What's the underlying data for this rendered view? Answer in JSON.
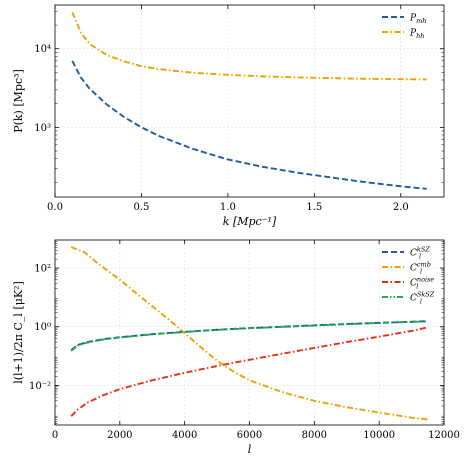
{
  "chart_data": [
    {
      "type": "line",
      "xlabel": "k [Mpc⁻¹]",
      "ylabel": "P(k) [Mpc³]",
      "xlim": [
        0,
        2.25
      ],
      "ylim": [
        130,
        36000
      ],
      "yscale": "log",
      "grid": true,
      "legend": "top-right",
      "x_ticks": [
        0.0,
        0.5,
        1.0,
        1.5,
        2.0
      ],
      "x_tick_labels": [
        "0.0",
        "0.5",
        "1.0",
        "1.5",
        "2.0"
      ],
      "y_ticks": [
        1000,
        10000
      ],
      "y_tick_labels": [
        "10³",
        "10⁴"
      ],
      "series": [
        {
          "name": "P_mh",
          "color": "#1f5aa6",
          "dash": "dashed",
          "x": [
            0.1,
            0.15,
            0.2,
            0.3,
            0.4,
            0.5,
            0.6,
            0.8,
            1.0,
            1.2,
            1.4,
            1.6,
            1.8,
            2.0,
            2.15
          ],
          "y": [
            7000,
            4300,
            3100,
            1950,
            1350,
            1000,
            780,
            530,
            390,
            315,
            265,
            230,
            200,
            178,
            165
          ]
        },
        {
          "name": "P_hh",
          "color": "#f0a000",
          "dash": "dashdot",
          "x": [
            0.1,
            0.15,
            0.2,
            0.3,
            0.4,
            0.5,
            0.6,
            0.8,
            1.0,
            1.2,
            1.4,
            1.6,
            1.8,
            2.0,
            2.15
          ],
          "y": [
            29000,
            16000,
            11500,
            8300,
            6900,
            6000,
            5500,
            4950,
            4650,
            4450,
            4320,
            4220,
            4150,
            4100,
            4070
          ]
        }
      ]
    },
    {
      "type": "line",
      "xlabel": "l",
      "ylabel": "l(l+1)/2π C_l [μK²]",
      "xlim": [
        0,
        12000
      ],
      "ylim": [
        0.00045,
        900
      ],
      "yscale": "log",
      "grid": true,
      "legend": "top-right",
      "x_ticks": [
        0,
        2000,
        4000,
        6000,
        8000,
        10000,
        12000
      ],
      "x_tick_labels": [
        "0",
        "2000",
        "4000",
        "6000",
        "8000",
        "10000",
        "12000"
      ],
      "y_ticks": [
        0.01,
        1,
        100
      ],
      "y_tick_labels": [
        "10⁻²",
        "10⁰",
        "10²"
      ],
      "series": [
        {
          "name": "C_l^kSZ",
          "color": "#1f5aa6",
          "dash": "dashed",
          "x": [
            500,
            700,
            1000,
            1500,
            2000,
            3000,
            4000,
            5000,
            6000,
            7000,
            8000,
            9000,
            10000,
            11000,
            11500
          ],
          "y": [
            0.16,
            0.24,
            0.3,
            0.38,
            0.44,
            0.56,
            0.67,
            0.79,
            0.9,
            1.0,
            1.12,
            1.24,
            1.36,
            1.48,
            1.55
          ]
        },
        {
          "name": "C_l^cmb",
          "color": "#f0a000",
          "dash": "dashdot",
          "x": [
            500,
            700,
            900,
            1100,
            1300,
            1600,
            2000,
            2500,
            3000,
            3500,
            4000,
            4500,
            5000,
            5500,
            6000,
            7000,
            8000,
            9000,
            10000,
            11000,
            11500
          ],
          "y": [
            520,
            420,
            350,
            230,
            150,
            85,
            40,
            14,
            5,
            1.8,
            0.6,
            0.2,
            0.07,
            0.03,
            0.015,
            0.006,
            0.003,
            0.0018,
            0.0012,
            0.0008,
            0.0007
          ]
        },
        {
          "name": "C_l^noise",
          "color": "#e83010",
          "dash": "dashdot",
          "x": [
            500,
            700,
            1000,
            1500,
            2000,
            3000,
            4000,
            5000,
            6000,
            7000,
            8000,
            9000,
            10000,
            11000,
            11500
          ],
          "y": [
            0.0009,
            0.0015,
            0.0026,
            0.0047,
            0.0075,
            0.015,
            0.027,
            0.046,
            0.075,
            0.12,
            0.19,
            0.3,
            0.46,
            0.72,
            0.95
          ]
        },
        {
          "name": "C_l^SkSZ",
          "color": "#22aa44",
          "dash": "dashdotdot",
          "x": [
            500,
            700,
            1000,
            1500,
            2000,
            3000,
            4000,
            5000,
            6000,
            7000,
            8000,
            9000,
            10000,
            11000,
            11500
          ],
          "y": [
            0.15,
            0.23,
            0.29,
            0.37,
            0.43,
            0.55,
            0.66,
            0.78,
            0.89,
            0.99,
            1.1,
            1.22,
            1.34,
            1.46,
            1.52
          ]
        }
      ]
    }
  ],
  "legend_labels": {
    "top": [
      {
        "main": "P",
        "sub": "mh",
        "sup": ""
      },
      {
        "main": "P",
        "sub": "hh",
        "sup": ""
      }
    ],
    "bottom": [
      {
        "main": "C",
        "sub": "l",
        "sup": "kSZ"
      },
      {
        "main": "C",
        "sub": "l",
        "sup": "cmb"
      },
      {
        "main": "C",
        "sub": "l",
        "sup": "noise"
      },
      {
        "main": "C",
        "sub": "l",
        "sup": "SkSZ"
      }
    ]
  }
}
